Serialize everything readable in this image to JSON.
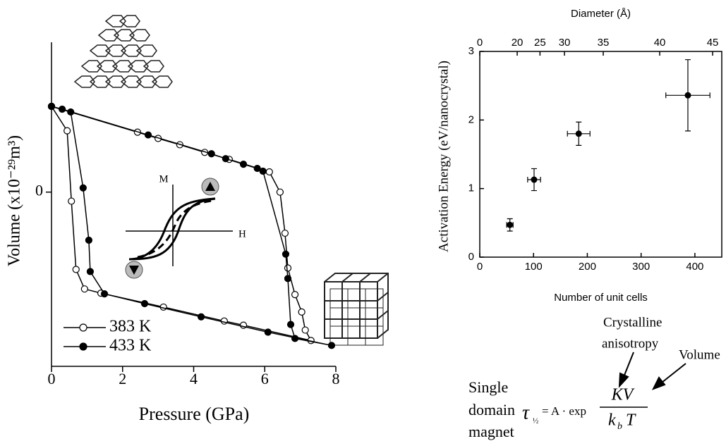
{
  "chart_data": [
    {
      "type": "line",
      "x_label": "Pressure (GPa)",
      "y_label": "Volume (x10⁻²⁹m³)",
      "xlim": [
        0,
        8
      ],
      "xticks": [
        0,
        2,
        4,
        6,
        8
      ],
      "ylim": [
        -2.5,
        2.15
      ],
      "yticks": [
        0
      ],
      "annotations": [
        "M",
        "H"
      ],
      "series": [
        {
          "name": "383 K",
          "color": "#000000",
          "marker_fill": "#ffffff",
          "x": [
            0,
            2.42,
            3.0,
            3.61,
            4.31,
            5.0,
            6.13,
            6.43,
            6.57,
            6.65,
            6.85,
            7.04,
            7.14,
            7.3,
            5.4,
            4.86,
            3.15,
            1.39,
            0.93,
            0.69,
            0.56,
            0.44,
            0
          ],
          "values": [
            1.23,
            0.86,
            0.77,
            0.68,
            0.57,
            0.47,
            0.29,
            0,
            -0.59,
            -1.09,
            -1.47,
            -1.72,
            -1.98,
            -2.13,
            -1.91,
            -1.85,
            -1.65,
            -1.45,
            -1.39,
            -1.11,
            -0.13,
            0.88,
            1.23
          ]
        },
        {
          "name": "433 K",
          "color": "#000000",
          "marker_fill": "#000000",
          "x": [
            0,
            0.3,
            2.72,
            4.5,
            4.9,
            5.4,
            5.79,
            5.95,
            6.59,
            6.65,
            6.73,
            6.85,
            7.88,
            6.09,
            4.21,
            2.62,
            1.49,
            1.09,
            1.05,
            0.89,
            0.54,
            0
          ],
          "values": [
            1.23,
            1.19,
            0.82,
            0.55,
            0.48,
            0.4,
            0.34,
            0.3,
            -0.89,
            -1.24,
            -1.9,
            -2.1,
            -2.2,
            -2.01,
            -1.79,
            -1.6,
            -1.46,
            -1.14,
            -0.69,
            0.06,
            1.15,
            1.23
          ]
        }
      ]
    },
    {
      "type": "scatter",
      "x_label": "Number of unit cells",
      "y_label": "Activation Energy (eV/nanocrystal)",
      "x2_label": "Diameter (Å)",
      "xlim": [
        0,
        450
      ],
      "xticks": [
        0,
        100,
        200,
        300,
        400
      ],
      "ylim": [
        0,
        3
      ],
      "yticks": [
        0,
        1,
        2,
        3
      ],
      "x2ticks": [
        0,
        {
          "value": 69.6,
          "label": "20"
        },
        {
          "value": 112,
          "label": "25"
        },
        {
          "value": 157.5,
          "label": "30"
        },
        {
          "value": 229.6,
          "label": "35"
        },
        {
          "value": 334.6,
          "label": "40"
        },
        {
          "value": 433,
          "label": "45"
        }
      ],
      "color": "#000000",
      "x": [
        56,
        101,
        184,
        387
      ],
      "xerr": [
        6,
        12,
        21,
        41
      ],
      "values": [
        0.47,
        1.13,
        1.8,
        2.36
      ],
      "yerr": [
        0.09,
        0.16,
        0.17,
        0.52
      ]
    }
  ],
  "equation": {
    "notes": [
      "Crystalline",
      "anisotropy",
      "Volume"
    ],
    "lead": [
      "Single",
      "domain",
      "magnet"
    ],
    "lhs": "τ",
    "lhs_sub": "½",
    "rhs": "= A · exp",
    "numerator": "KV",
    "denominator": "k",
    "denominator_sub": "b",
    "denominator_tail": "T"
  }
}
